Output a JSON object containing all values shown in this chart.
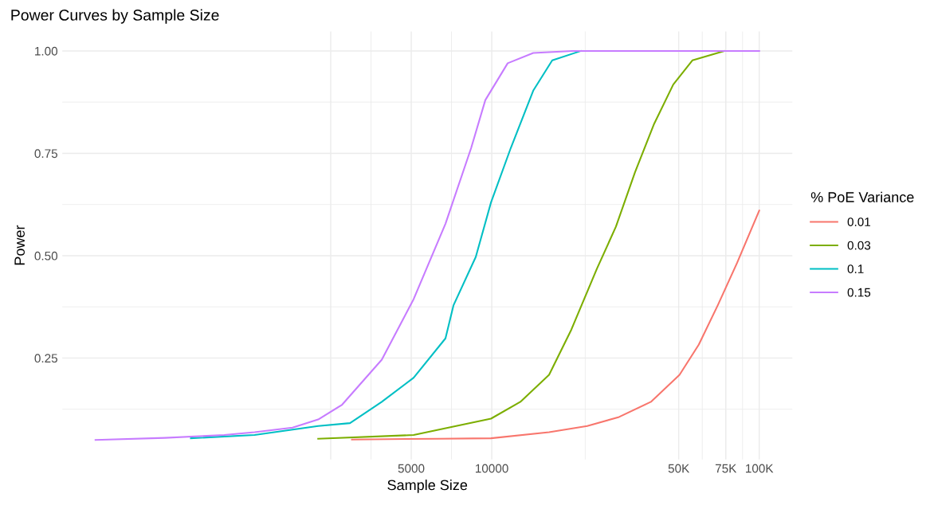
{
  "chart_data": {
    "type": "line",
    "title": "Power Curves by Sample Size",
    "xlabel": "Sample Size",
    "ylabel": "Power",
    "legend_title": "% PoE Variance",
    "log": "x",
    "grid": true,
    "legend": "right",
    "line_style": "solid",
    "marker": "none",
    "xlim": [
      248,
      133000
    ],
    "ylim": [
      0.0025,
      1.0475
    ],
    "xticks": [
      {
        "value": 2500,
        "label": null
      },
      5000,
      10000,
      {
        "value": 50000,
        "label": "50K"
      },
      {
        "value": 75000,
        "label": "75K"
      },
      {
        "value": 100000,
        "label": "100K"
      }
    ],
    "yticks": [
      {
        "value": 0.25,
        "label": "0.25"
      },
      {
        "value": 0.5,
        "label": "0.50"
      },
      {
        "value": 0.75,
        "label": "0.75"
      },
      {
        "value": 1.0,
        "label": "1.00"
      }
    ],
    "series": [
      {
        "name": "0.01",
        "color": "#f8766d",
        "x": [
          3000,
          6280,
          9934,
          16380,
          22750,
          29920,
          39350,
          50350,
          59450,
          70000,
          82600,
          100000
        ],
        "values": [
          0.051,
          0.053,
          0.054,
          0.069,
          0.084,
          0.106,
          0.143,
          0.209,
          0.283,
          0.379,
          0.482,
          0.61
        ]
      },
      {
        "name": "0.03",
        "color": "#7cae00",
        "x": [
          2244,
          5105,
          9934,
          12790,
          16380,
          19860,
          24720,
          29130,
          34330,
          40460,
          47700,
          56230,
          73960
        ],
        "values": [
          0.053,
          0.062,
          0.102,
          0.143,
          0.209,
          0.32,
          0.468,
          0.571,
          0.704,
          0.822,
          0.918,
          0.977,
          1.0
        ]
      },
      {
        "name": "0.1",
        "color": "#00bfc4",
        "x": [
          750,
          1298,
          2244,
          2951,
          3880,
          5105,
          6714,
          7197,
          8715,
          9934,
          11780,
          14290,
          16830,
          21540
        ],
        "values": [
          0.054,
          0.062,
          0.084,
          0.091,
          0.143,
          0.202,
          0.298,
          0.379,
          0.497,
          0.63,
          0.763,
          0.903,
          0.977,
          1.0
        ]
      },
      {
        "name": "0.15",
        "color": "#c77cff",
        "x": [
          330,
          600,
          1000,
          1298,
          1800,
          2244,
          2757,
          3880,
          5105,
          6714,
          8375,
          9462,
          11470,
          14290,
          20000,
          100000
        ],
        "values": [
          0.05,
          0.055,
          0.062,
          0.069,
          0.08,
          0.1,
          0.136,
          0.246,
          0.394,
          0.578,
          0.763,
          0.88,
          0.97,
          0.995,
          1.0,
          1.0
        ]
      }
    ]
  }
}
